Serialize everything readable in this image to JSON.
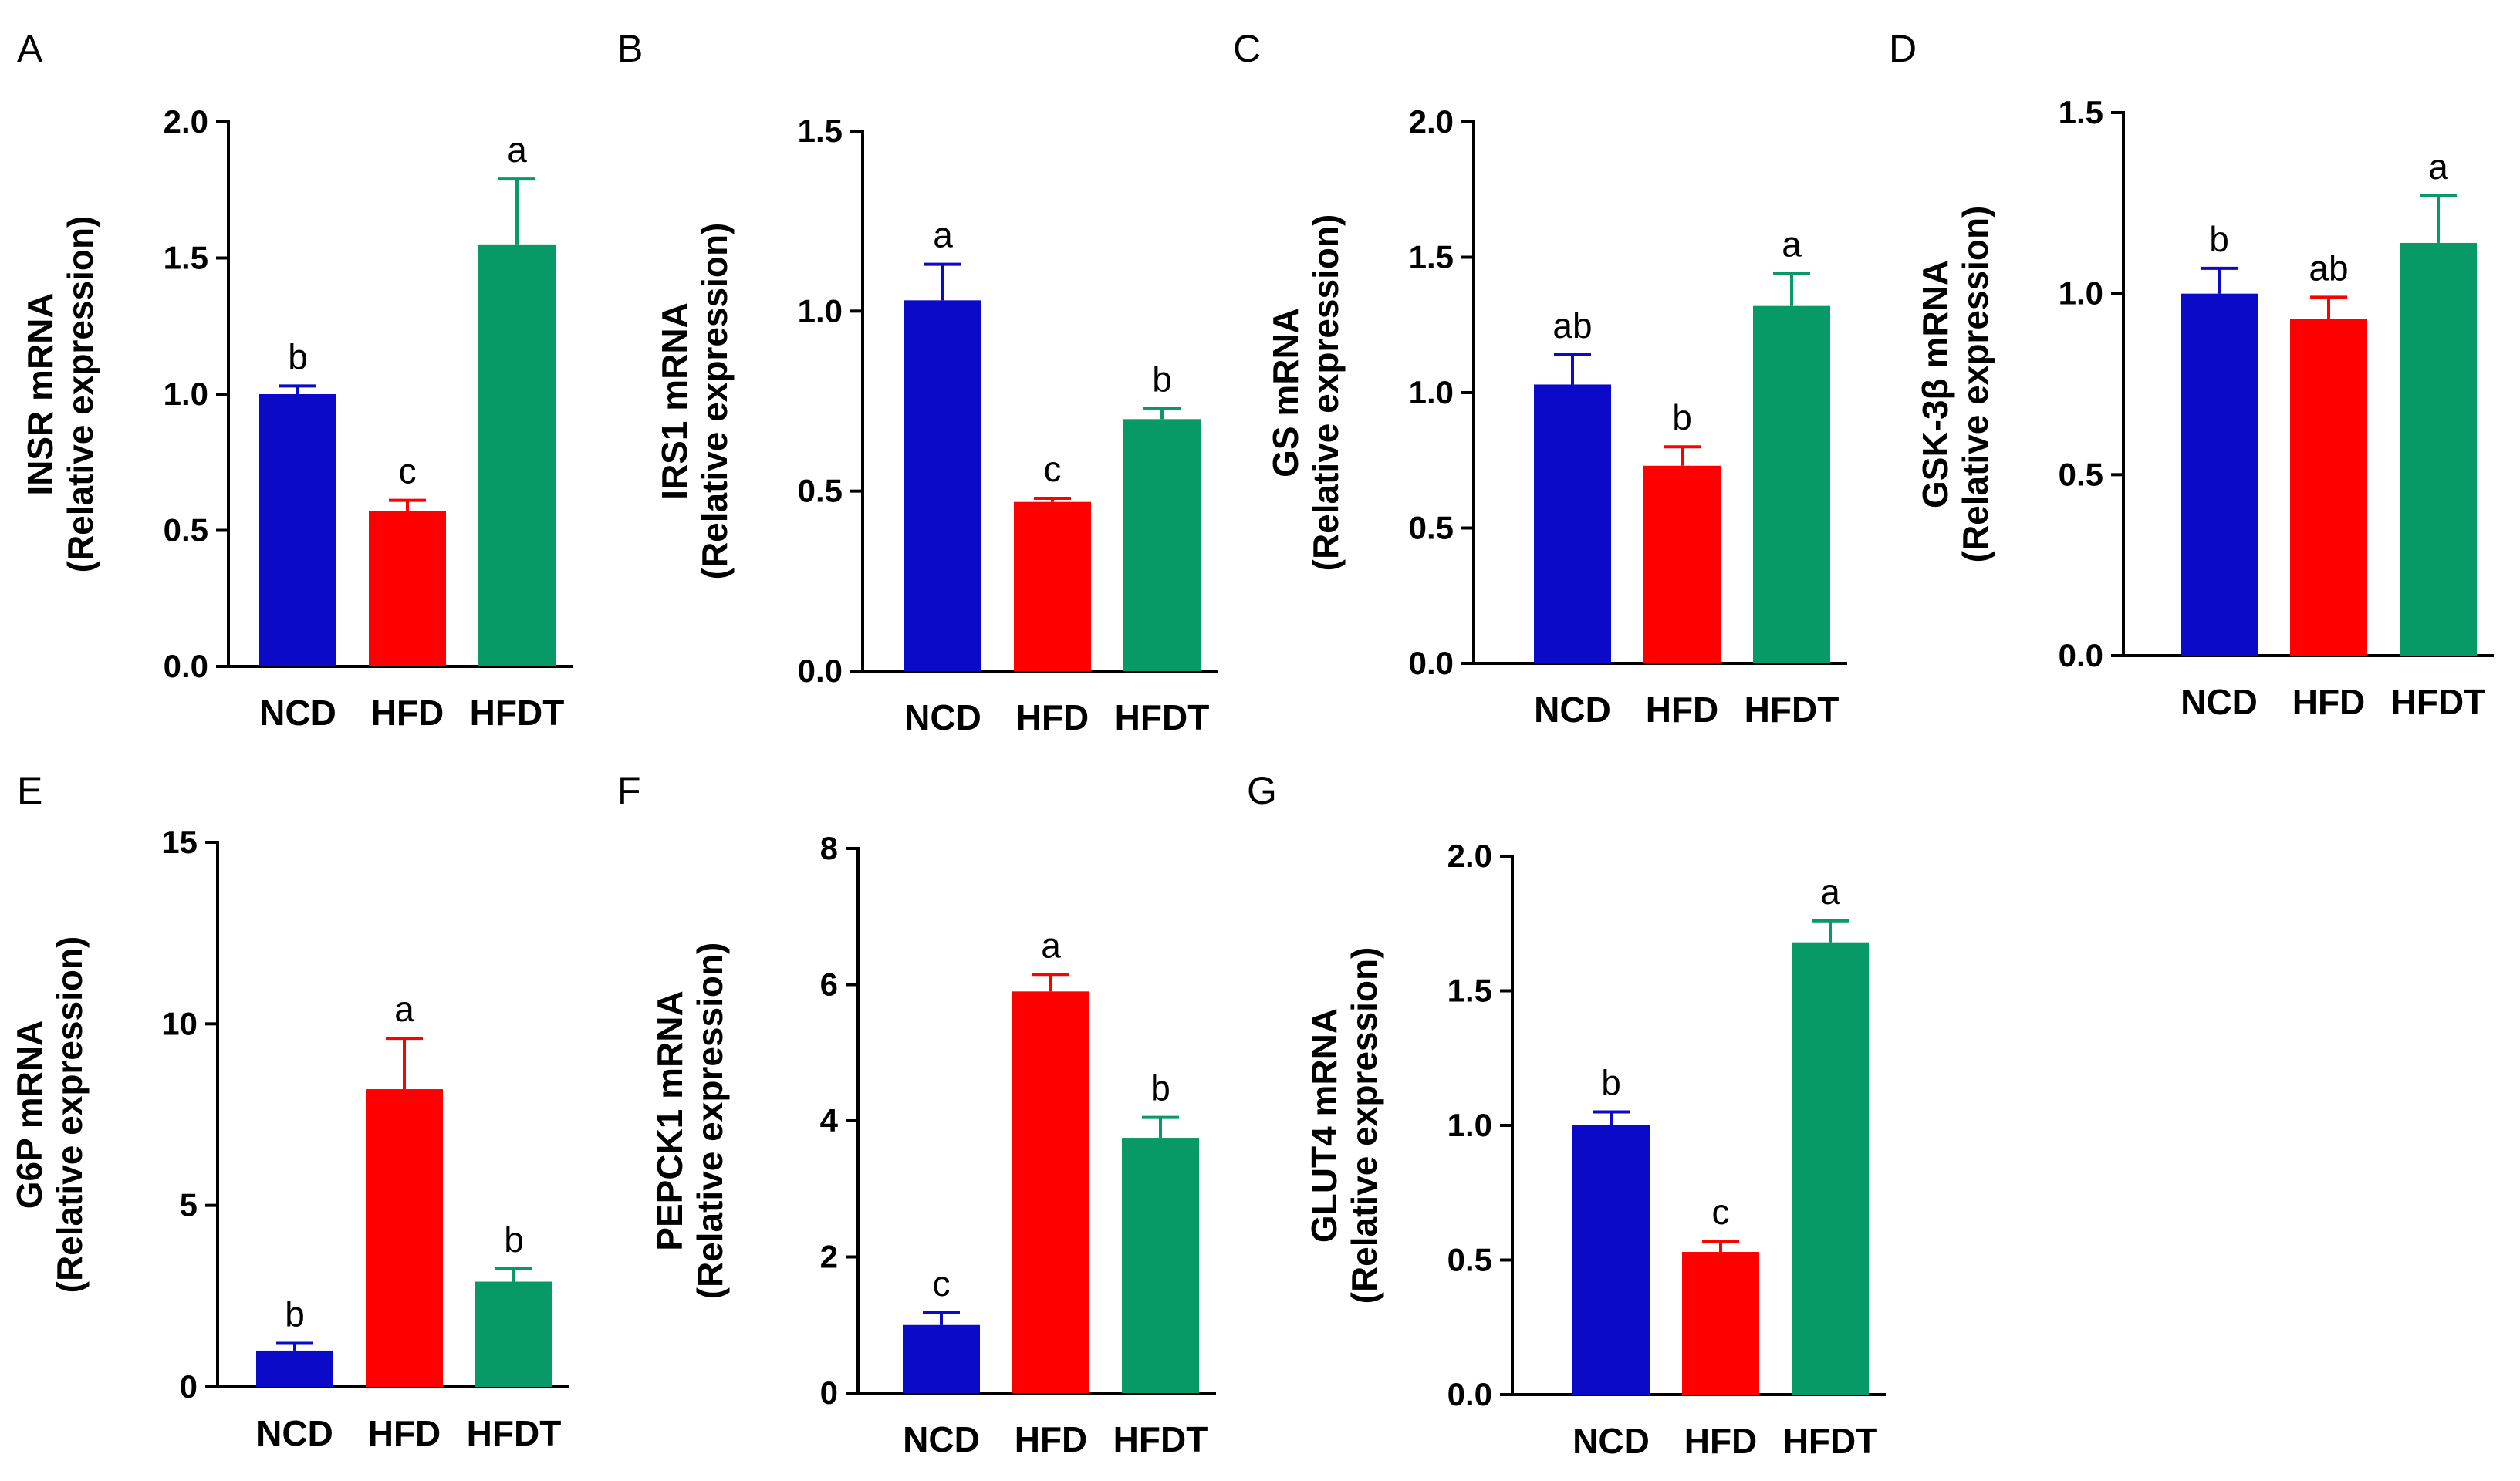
{
  "colors": {
    "NCD": "#0a0ac8",
    "HFD": "#ff0000",
    "HFDT": "#079966"
  },
  "chart_data": [
    {
      "panel": "A",
      "type": "bar",
      "ylabel": "INSR mRNA",
      "ylabel2": "(Relative expression)",
      "categories": [
        "NCD",
        "HFD",
        "HFDT"
      ],
      "values": [
        1.0,
        0.57,
        1.55
      ],
      "errors": [
        0.03,
        0.04,
        0.24
      ],
      "sig": [
        "b",
        "c",
        "a"
      ],
      "ylim": [
        0,
        2.0
      ],
      "yticks": [
        0,
        0.5,
        1.0,
        1.5,
        2.0
      ],
      "ytick_labels": [
        "0.0",
        "0.5",
        "1.0",
        "1.5",
        "2.0"
      ]
    },
    {
      "panel": "B",
      "type": "bar",
      "ylabel": "IRS1 mRNA",
      "ylabel2": "(Relative expression)",
      "categories": [
        "NCD",
        "HFD",
        "HFDT"
      ],
      "values": [
        1.03,
        0.47,
        0.7
      ],
      "errors": [
        0.1,
        0.01,
        0.03
      ],
      "sig": [
        "a",
        "c",
        "b"
      ],
      "ylim": [
        0,
        1.5
      ],
      "yticks": [
        0,
        0.5,
        1.0,
        1.5
      ],
      "ytick_labels": [
        "0.0",
        "0.5",
        "1.0",
        "1.5"
      ]
    },
    {
      "panel": "C",
      "type": "bar",
      "ylabel": "GS mRNA",
      "ylabel2": "(Relative expression)",
      "categories": [
        "NCD",
        "HFD",
        "HFDT"
      ],
      "values": [
        1.03,
        0.73,
        1.32
      ],
      "errors": [
        0.11,
        0.07,
        0.12
      ],
      "sig": [
        "ab",
        "b",
        "a"
      ],
      "ylim": [
        0,
        2.0
      ],
      "yticks": [
        0,
        0.5,
        1.0,
        1.5,
        2.0
      ],
      "ytick_labels": [
        "0.0",
        "0.5",
        "1.0",
        "1.5",
        "2.0"
      ]
    },
    {
      "panel": "D",
      "type": "bar",
      "ylabel": "GSK-3β mRNA",
      "ylabel2": "(Relative expression)",
      "categories": [
        "NCD",
        "HFD",
        "HFDT"
      ],
      "values": [
        1.0,
        0.93,
        1.14
      ],
      "errors": [
        0.07,
        0.06,
        0.13
      ],
      "sig": [
        "b",
        "ab",
        "a"
      ],
      "ylim": [
        0,
        1.5
      ],
      "yticks": [
        0,
        0.5,
        1.0,
        1.5
      ],
      "ytick_labels": [
        "0.0",
        "0.5",
        "1.0",
        "1.5"
      ]
    },
    {
      "panel": "E",
      "type": "bar",
      "ylabel": "G6P mRNA",
      "ylabel2": "(Relative expression)",
      "categories": [
        "NCD",
        "HFD",
        "HFDT"
      ],
      "values": [
        1.0,
        8.2,
        2.9
      ],
      "errors": [
        0.2,
        1.4,
        0.35
      ],
      "sig": [
        "b",
        "a",
        "b"
      ],
      "ylim": [
        0,
        15
      ],
      "yticks": [
        0,
        5,
        10,
        15
      ],
      "ytick_labels": [
        "0",
        "5",
        "10",
        "15"
      ]
    },
    {
      "panel": "F",
      "type": "bar",
      "ylabel": "PEPCK1 mRNA",
      "ylabel2": "(Relative expression)",
      "categories": [
        "NCD",
        "HFD",
        "HFDT"
      ],
      "values": [
        1.0,
        5.9,
        3.75
      ],
      "errors": [
        0.18,
        0.25,
        0.3
      ],
      "sig": [
        "c",
        "a",
        "b"
      ],
      "ylim": [
        0,
        8
      ],
      "yticks": [
        0,
        2,
        4,
        6,
        8
      ],
      "ytick_labels": [
        "0",
        "2",
        "4",
        "6",
        "8"
      ]
    },
    {
      "panel": "G",
      "type": "bar",
      "ylabel": "GLUT4 mRNA",
      "ylabel2": "(Relative expression)",
      "categories": [
        "NCD",
        "HFD",
        "HFDT"
      ],
      "values": [
        1.0,
        0.53,
        1.68
      ],
      "errors": [
        0.05,
        0.04,
        0.08
      ],
      "sig": [
        "b",
        "c",
        "a"
      ],
      "ylim": [
        0,
        2.0
      ],
      "yticks": [
        0,
        0.5,
        1.0,
        1.5,
        2.0
      ],
      "ytick_labels": [
        "0.0",
        "0.5",
        "1.0",
        "1.5",
        "2.0"
      ]
    }
  ]
}
